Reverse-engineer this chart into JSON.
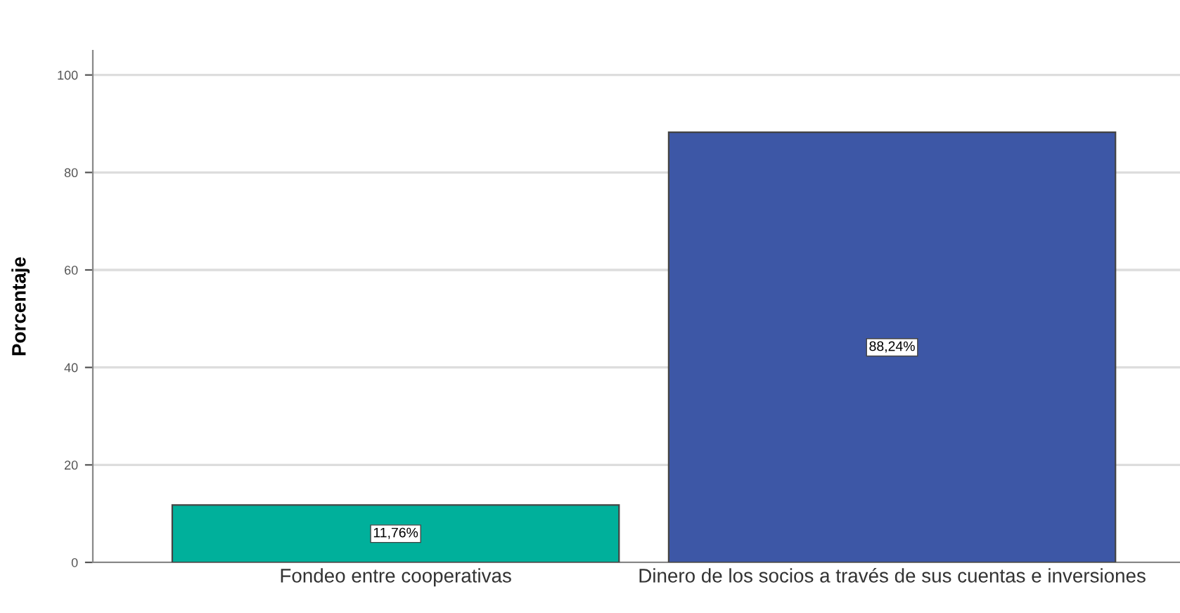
{
  "chart_data": {
    "type": "bar",
    "ylabel": "Porcentaje",
    "categories": [
      "Fondeo entre cooperativas",
      "Dinero de los socios a través de sus cuentas e inversiones"
    ],
    "values": [
      11.76,
      88.24
    ],
    "colors": [
      "#00b09b",
      "#3d57a6"
    ],
    "value_labels": [
      "11,76%",
      "88,24%"
    ],
    "ylim": [
      0,
      105
    ],
    "yticks": [
      0,
      20,
      40,
      60,
      80,
      100
    ],
    "grid": "y"
  }
}
